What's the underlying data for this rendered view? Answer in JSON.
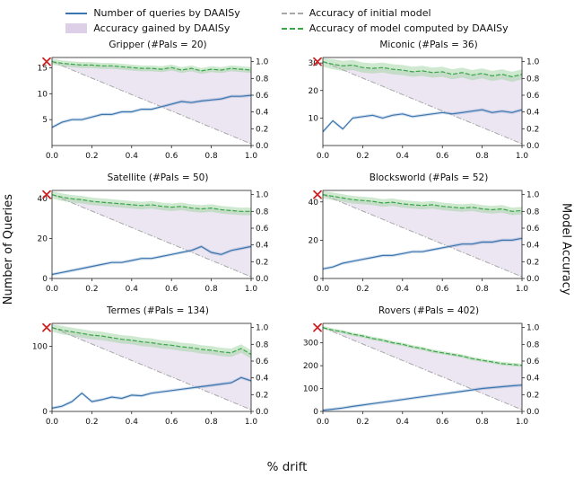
{
  "figure": {
    "legend": [
      {
        "label": "Number of queries by DAAISy"
      },
      {
        "label": "Accuracy gained by DAAISy"
      },
      {
        "label": "Accuracy of initial model"
      },
      {
        "label": "Accuracy of model computed by DAAISy"
      }
    ],
    "ylabel_left": "Number of Queries",
    "ylabel_right": "Model Accuracy",
    "xlabel": "% drift",
    "colors": {
      "queries": "#3b75af",
      "gained_fill": "#ddcfe8",
      "initial": "#a8a8a8",
      "computed": "#3aa648",
      "computed_fill": "#9ed4a0",
      "red_marker": "#cf2222"
    }
  },
  "chart_data": [
    {
      "type": "line",
      "title": "Gripper (#Pals = 20)",
      "x": [
        0,
        0.05,
        0.1,
        0.15,
        0.2,
        0.25,
        0.3,
        0.35,
        0.4,
        0.45,
        0.5,
        0.55,
        0.6,
        0.65,
        0.7,
        0.75,
        0.8,
        0.85,
        0.9,
        0.95,
        1.0
      ],
      "queries": [
        3.5,
        4.5,
        5,
        5,
        5.5,
        6,
        6,
        6.5,
        6.5,
        7,
        7,
        7.5,
        8,
        8.5,
        8.3,
        8.6,
        8.8,
        9,
        9.5,
        9.5,
        9.7
      ],
      "computed_accuracy": [
        1.0,
        0.98,
        0.97,
        0.96,
        0.96,
        0.95,
        0.95,
        0.94,
        0.93,
        0.92,
        0.92,
        0.91,
        0.93,
        0.9,
        0.92,
        0.89,
        0.91,
        0.9,
        0.92,
        0.91,
        0.9
      ],
      "initial_accuracy": [
        1.0,
        0.02
      ],
      "band": 0.035,
      "queries_ylim": [
        0,
        17
      ],
      "queries_ticks": [
        5,
        10,
        15
      ],
      "accuracy_ticks": [
        0.0,
        0.2,
        0.4,
        0.6,
        0.8,
        1.0
      ],
      "x_ticks": [
        0.0,
        0.2,
        0.4,
        0.6,
        0.8,
        1.0
      ],
      "red_x": {
        "x": 0.0,
        "accuracy": 1.0
      }
    },
    {
      "type": "line",
      "title": "Miconic (#Pals = 36)",
      "x": [
        0,
        0.05,
        0.1,
        0.15,
        0.2,
        0.25,
        0.3,
        0.35,
        0.4,
        0.45,
        0.5,
        0.55,
        0.6,
        0.65,
        0.7,
        0.75,
        0.8,
        0.85,
        0.9,
        0.95,
        1.0
      ],
      "queries": [
        5,
        9,
        6,
        10,
        10.5,
        11,
        10,
        11,
        11.5,
        10.5,
        11,
        11.5,
        12,
        11.5,
        12,
        12.5,
        13,
        12,
        12.5,
        12,
        13
      ],
      "computed_accuracy": [
        1.0,
        0.97,
        0.95,
        0.96,
        0.93,
        0.92,
        0.93,
        0.91,
        0.9,
        0.88,
        0.89,
        0.87,
        0.88,
        0.85,
        0.87,
        0.84,
        0.86,
        0.83,
        0.85,
        0.82,
        0.85
      ],
      "initial_accuracy": [
        1.0,
        0.02
      ],
      "band": 0.06,
      "queries_ylim": [
        0,
        32
      ],
      "queries_ticks": [
        10,
        20,
        30
      ],
      "accuracy_ticks": [
        0.0,
        0.2,
        0.4,
        0.6,
        0.8,
        1.0
      ],
      "x_ticks": [
        0.0,
        0.2,
        0.4,
        0.6,
        0.8,
        1.0
      ],
      "red_x": {
        "x": 0.0,
        "accuracy": 1.0
      }
    },
    {
      "type": "line",
      "title": "Satellite (#Pals = 50)",
      "x": [
        0,
        0.05,
        0.1,
        0.15,
        0.2,
        0.25,
        0.3,
        0.35,
        0.4,
        0.45,
        0.5,
        0.55,
        0.6,
        0.65,
        0.7,
        0.75,
        0.8,
        0.85,
        0.9,
        0.95,
        1.0
      ],
      "queries": [
        2,
        3,
        4,
        5,
        6,
        7,
        8,
        8,
        9,
        10,
        10,
        11,
        12,
        13,
        14,
        16,
        13,
        12,
        14,
        15,
        16
      ],
      "computed_accuracy": [
        1.0,
        0.97,
        0.95,
        0.94,
        0.92,
        0.91,
        0.9,
        0.89,
        0.88,
        0.87,
        0.88,
        0.86,
        0.85,
        0.86,
        0.84,
        0.83,
        0.84,
        0.82,
        0.81,
        0.8,
        0.8
      ],
      "initial_accuracy": [
        1.0,
        0.02
      ],
      "band": 0.045,
      "queries_ylim": [
        0,
        44
      ],
      "queries_ticks": [
        0,
        20,
        40
      ],
      "accuracy_ticks": [
        0.0,
        0.2,
        0.4,
        0.6,
        0.8,
        1.0
      ],
      "x_ticks": [
        0.0,
        0.2,
        0.4,
        0.6,
        0.8,
        1.0
      ],
      "red_x": {
        "x": 0.0,
        "accuracy": 1.0
      }
    },
    {
      "type": "line",
      "title": "Blocksworld (#Pals = 52)",
      "x": [
        0,
        0.05,
        0.1,
        0.15,
        0.2,
        0.25,
        0.3,
        0.35,
        0.4,
        0.45,
        0.5,
        0.55,
        0.6,
        0.65,
        0.7,
        0.75,
        0.8,
        0.85,
        0.9,
        0.95,
        1.0
      ],
      "queries": [
        5,
        6,
        8,
        9,
        10,
        11,
        12,
        12,
        13,
        14,
        14,
        15,
        16,
        17,
        18,
        18,
        19,
        19,
        20,
        20,
        21
      ],
      "computed_accuracy": [
        1.0,
        0.98,
        0.96,
        0.94,
        0.93,
        0.92,
        0.9,
        0.91,
        0.89,
        0.88,
        0.87,
        0.88,
        0.86,
        0.85,
        0.84,
        0.85,
        0.83,
        0.82,
        0.83,
        0.8,
        0.81
      ],
      "initial_accuracy": [
        1.0,
        0.02
      ],
      "band": 0.045,
      "queries_ylim": [
        0,
        46
      ],
      "queries_ticks": [
        0,
        20,
        40
      ],
      "accuracy_ticks": [
        0.0,
        0.2,
        0.4,
        0.6,
        0.8,
        1.0
      ],
      "x_ticks": [
        0.0,
        0.2,
        0.4,
        0.6,
        0.8,
        1.0
      ],
      "red_x": {
        "x": 0.0,
        "accuracy": 1.0
      }
    },
    {
      "type": "line",
      "title": "Termes (#Pals = 134)",
      "x": [
        0,
        0.05,
        0.1,
        0.15,
        0.2,
        0.25,
        0.3,
        0.35,
        0.4,
        0.45,
        0.5,
        0.55,
        0.6,
        0.65,
        0.7,
        0.75,
        0.8,
        0.85,
        0.9,
        0.95,
        1.0
      ],
      "queries": [
        5,
        8,
        15,
        28,
        15,
        18,
        22,
        20,
        25,
        24,
        28,
        30,
        32,
        34,
        36,
        38,
        40,
        42,
        44,
        52,
        47
      ],
      "computed_accuracy": [
        1.0,
        0.97,
        0.95,
        0.93,
        0.91,
        0.9,
        0.88,
        0.86,
        0.85,
        0.83,
        0.82,
        0.8,
        0.79,
        0.77,
        0.76,
        0.74,
        0.73,
        0.71,
        0.7,
        0.75,
        0.68
      ],
      "initial_accuracy": [
        1.0,
        0.02
      ],
      "band": 0.05,
      "queries_ylim": [
        0,
        135
      ],
      "queries_ticks": [
        0,
        100
      ],
      "accuracy_ticks": [
        0.0,
        0.2,
        0.4,
        0.6,
        0.8,
        1.0
      ],
      "x_ticks": [
        0.0,
        0.2,
        0.4,
        0.6,
        0.8,
        1.0
      ],
      "red_x": {
        "x": 0.0,
        "accuracy": 1.0
      }
    },
    {
      "type": "line",
      "title": "Rovers (#Pals = 402)",
      "x": [
        0,
        0.05,
        0.1,
        0.15,
        0.2,
        0.25,
        0.3,
        0.35,
        0.4,
        0.45,
        0.5,
        0.55,
        0.6,
        0.65,
        0.7,
        0.75,
        0.8,
        0.85,
        0.9,
        0.95,
        1.0
      ],
      "queries": [
        5,
        10,
        15,
        22,
        28,
        34,
        40,
        46,
        52,
        58,
        64,
        70,
        76,
        82,
        88,
        94,
        100,
        104,
        108,
        112,
        115
      ],
      "computed_accuracy": [
        1.0,
        0.97,
        0.95,
        0.92,
        0.9,
        0.87,
        0.85,
        0.82,
        0.8,
        0.77,
        0.75,
        0.72,
        0.7,
        0.68,
        0.66,
        0.63,
        0.61,
        0.59,
        0.57,
        0.56,
        0.55
      ],
      "initial_accuracy": [
        1.0,
        0.02
      ],
      "band": 0.02,
      "queries_ylim": [
        0,
        385
      ],
      "queries_ticks": [
        0,
        100,
        200,
        300
      ],
      "accuracy_ticks": [
        0.0,
        0.2,
        0.4,
        0.6,
        0.8,
        1.0
      ],
      "x_ticks": [
        0.0,
        0.2,
        0.4,
        0.6,
        0.8,
        1.0
      ],
      "red_x": {
        "x": 0.0,
        "accuracy": 1.0
      }
    }
  ]
}
